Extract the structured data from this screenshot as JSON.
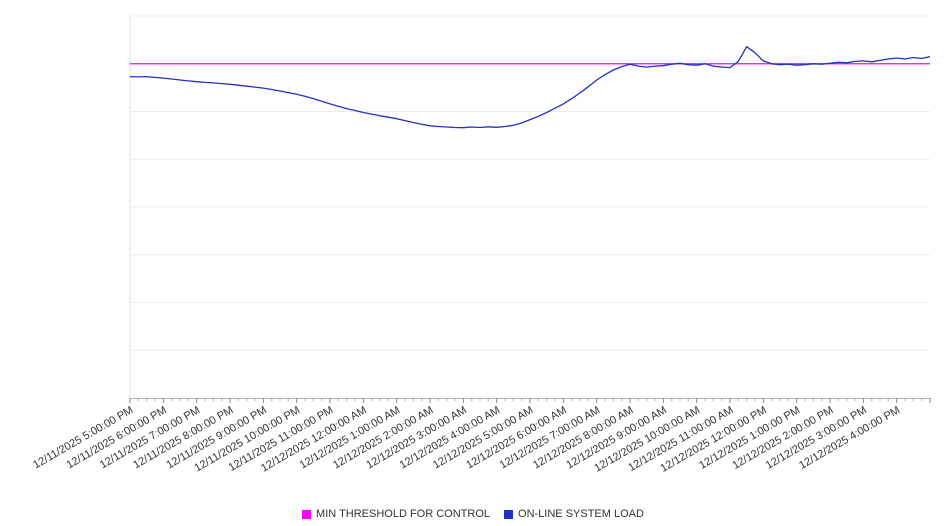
{
  "chart_data": {
    "type": "line",
    "title": "",
    "xlabel": "",
    "ylabel": "",
    "x_labels": [
      "12/11/2025 5:00:00 PM",
      "12/11/2025 6:00:00 PM",
      "12/11/2025 7:00:00 PM",
      "12/11/2025 8:00:00 PM",
      "12/11/2025 9:00:00 PM",
      "12/11/2025 10:00:00 PM",
      "12/11/2025 11:00:00 PM",
      "12/12/2025 12:00:00 AM",
      "12/12/2025 1:00:00 AM",
      "12/12/2025 2:00:00 AM",
      "12/12/2025 3:00:00 AM",
      "12/12/2025 4:00:00 AM",
      "12/12/2025 5:00:00 AM",
      "12/12/2025 6:00:00 AM",
      "12/12/2025 7:00:00 AM",
      "12/12/2025 8:00:00 AM",
      "12/12/2025 9:00:00 AM",
      "12/12/2025 10:00:00 AM",
      "12/12/2025 11:00:00 AM",
      "12/12/2025 12:00:00 PM",
      "12/12/2025 1:00:00 PM",
      "12/12/2025 2:00:00 PM",
      "12/12/2025 3:00:00 PM",
      "12/12/2025 4:00:00 PM"
    ],
    "x_span_hours": 24,
    "points_per_hour": 4,
    "ylim": [
      0,
      80
    ],
    "grid_step": 10,
    "grid": true,
    "legend_position": "bottom",
    "series": [
      {
        "name": "MIN THRESHOLD FOR CONTROL",
        "color": "#ff00ff",
        "kind": "constant",
        "value": 70
      },
      {
        "name": "ON-LINE SYSTEM LOAD",
        "color": "#2230c3",
        "kind": "line",
        "values": [
          67.3,
          67.25,
          67.3,
          67.15,
          67.0,
          66.8,
          66.6,
          66.4,
          66.25,
          66.1,
          66.0,
          65.85,
          65.7,
          65.5,
          65.3,
          65.1,
          64.9,
          64.6,
          64.3,
          63.95,
          63.6,
          63.2,
          62.7,
          62.15,
          61.6,
          61.1,
          60.6,
          60.2,
          59.8,
          59.45,
          59.1,
          58.8,
          58.5,
          58.1,
          57.7,
          57.35,
          57.0,
          56.85,
          56.75,
          56.65,
          56.6,
          56.75,
          56.65,
          56.8,
          56.7,
          56.85,
          57.1,
          57.6,
          58.3,
          59.0,
          59.8,
          60.7,
          61.6,
          62.7,
          63.9,
          65.2,
          66.6,
          67.7,
          68.7,
          69.4,
          69.9,
          69.5,
          69.3,
          69.5,
          69.6,
          69.9,
          70.1,
          69.8,
          69.7,
          70.0,
          69.5,
          69.3,
          69.2,
          70.5,
          73.6,
          72.3,
          70.6,
          70.0,
          69.8,
          69.9,
          69.7,
          69.8,
          70.0,
          69.9,
          70.1,
          70.3,
          70.2,
          70.5,
          70.6,
          70.4,
          70.7,
          71.0,
          71.2,
          71.0,
          71.3,
          71.1,
          71.5
        ]
      }
    ]
  }
}
